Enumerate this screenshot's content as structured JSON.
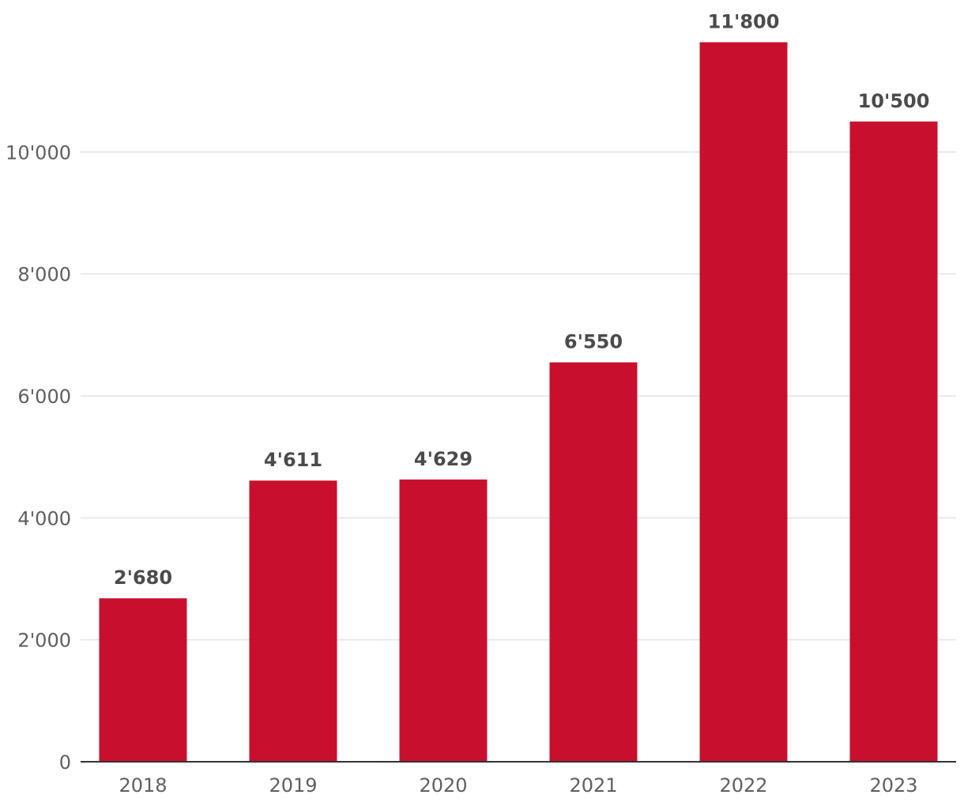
{
  "chart_data": {
    "type": "bar",
    "title": "",
    "xlabel": "",
    "ylabel": "",
    "categories": [
      "2018",
      "2019",
      "2020",
      "2021",
      "2022",
      "2023"
    ],
    "values": [
      2680,
      4611,
      4629,
      6550,
      11800,
      10500
    ],
    "value_labels": [
      "2'680",
      "4'611",
      "4'629",
      "6'550",
      "11'800",
      "10'500"
    ],
    "ylim": [
      0,
      12000
    ],
    "yticks": [
      0,
      2000,
      4000,
      6000,
      8000,
      10000
    ],
    "ytick_labels": [
      "0",
      "2'000",
      "4'000",
      "6'000",
      "8'000",
      "10'000"
    ],
    "grid": true,
    "legend": "none",
    "bar_color": "#c8102e"
  }
}
